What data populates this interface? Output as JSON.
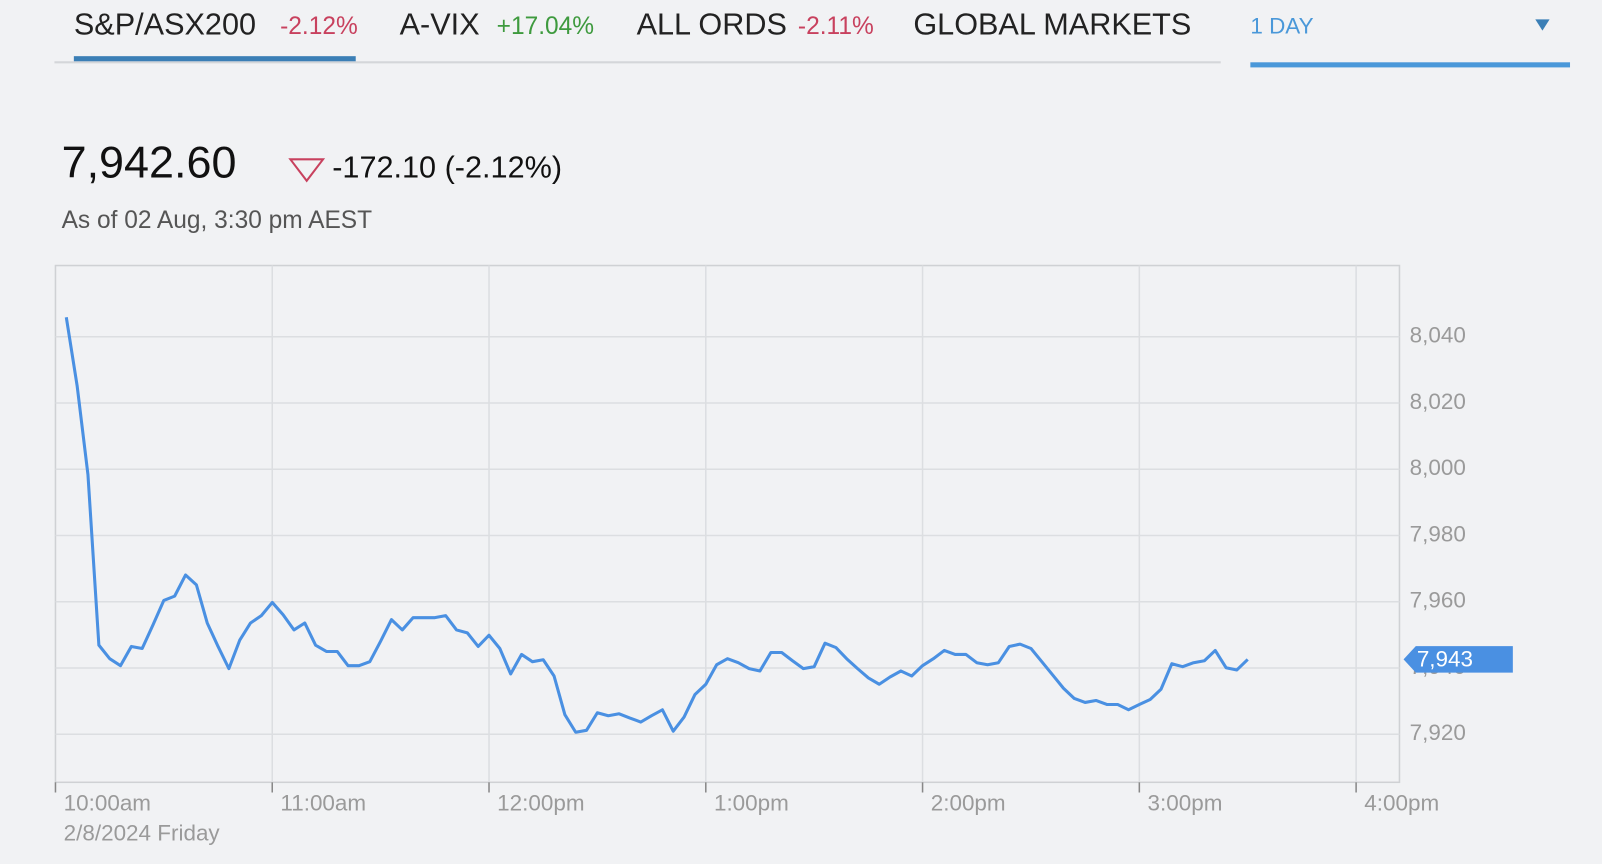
{
  "tabs": [
    {
      "label": "S&P/ASX200",
      "change": "-2.12%",
      "change_color": "#c8415e",
      "active": true
    },
    {
      "label": "A-VIX",
      "change": "+17.04%",
      "change_color": "#3e9a3e",
      "active": false
    },
    {
      "label": "ALL ORDS",
      "change": "-2.11%",
      "change_color": "#c8415e",
      "active": false
    },
    {
      "label": "GLOBAL MARKETS",
      "active": false
    }
  ],
  "range_selector": "1 DAY",
  "quote": {
    "price": "7,942.60",
    "change": "-172.10 (-2.12%)",
    "as_of": "As of 02 Aug, 3:30 pm AEST"
  },
  "chart_data": {
    "type": "line",
    "color": "#4a90e2",
    "date_label": "2/8/2024 Friday",
    "current_label": "7,943",
    "xlim": [
      "10:00am",
      "4:12pm"
    ],
    "xticks": [
      "10:00am",
      "11:00am",
      "12:00pm",
      "1:00pm",
      "2:00pm",
      "3:00pm",
      "4:00pm"
    ],
    "ylim": [
      7905.5,
      8061.5
    ],
    "yticks": [
      {
        "value": 7920,
        "label": "7,920"
      },
      {
        "value": 7940,
        "label": "7,940"
      },
      {
        "value": 7960,
        "label": "7,960"
      },
      {
        "value": 7980,
        "label": "7,980"
      },
      {
        "value": 8000,
        "label": "8,000"
      },
      {
        "value": 8020,
        "label": "8,020"
      },
      {
        "value": 8040,
        "label": "8,040"
      }
    ],
    "grid": true,
    "x": [
      "10:03am",
      "10:06am",
      "10:09am",
      "10:12am",
      "10:15am",
      "10:18am",
      "10:21am",
      "10:24am",
      "10:27am",
      "10:30am",
      "10:33am",
      "10:36am",
      "10:39am",
      "10:42am",
      "10:45am",
      "10:48am",
      "10:51am",
      "10:54am",
      "10:57am",
      "11:00am",
      "11:03am",
      "11:06am",
      "11:09am",
      "11:12am",
      "11:15am",
      "11:18am",
      "11:21am",
      "11:24am",
      "11:27am",
      "11:30am",
      "11:33am",
      "11:36am",
      "11:39am",
      "11:42am",
      "11:45am",
      "11:48am",
      "11:51am",
      "11:54am",
      "11:57am",
      "12:00pm",
      "12:03pm",
      "12:06pm",
      "12:09pm",
      "12:12pm",
      "12:15pm",
      "12:18pm",
      "12:21pm",
      "12:24pm",
      "12:27pm",
      "12:30pm",
      "12:33pm",
      "12:36pm",
      "12:39pm",
      "12:42pm",
      "12:45pm",
      "12:48pm",
      "12:51pm",
      "12:54pm",
      "12:57pm",
      "1:00pm",
      "1:03pm",
      "1:06pm",
      "1:09pm",
      "1:12pm",
      "1:15pm",
      "1:18pm",
      "1:21pm",
      "1:24pm",
      "1:27pm",
      "1:30pm",
      "1:33pm",
      "1:36pm",
      "1:39pm",
      "1:42pm",
      "1:45pm",
      "1:48pm",
      "1:51pm",
      "1:54pm",
      "1:57pm",
      "2:00pm",
      "2:03pm",
      "2:06pm",
      "2:09pm",
      "2:12pm",
      "2:15pm",
      "2:18pm",
      "2:21pm",
      "2:24pm",
      "2:27pm",
      "2:30pm",
      "2:33pm",
      "2:36pm",
      "2:39pm",
      "2:42pm",
      "2:45pm",
      "2:48pm",
      "2:51pm",
      "2:54pm",
      "2:57pm",
      "3:00pm",
      "3:03pm",
      "3:06pm",
      "3:09pm",
      "3:12pm",
      "3:15pm",
      "3:18pm",
      "3:21pm",
      "3:24pm",
      "3:27pm",
      "3:30pm"
    ],
    "values": [
      8045.9,
      8025.2,
      7998.4,
      7946.9,
      7942.8,
      7940.7,
      7946.5,
      7945.9,
      7953.0,
      7960.4,
      7961.7,
      7968.1,
      7965.1,
      7953.6,
      7946.5,
      7939.8,
      7948.4,
      7953.6,
      7955.8,
      7959.8,
      7956.1,
      7951.5,
      7953.6,
      7946.9,
      7945.0,
      7945.0,
      7940.7,
      7940.7,
      7941.9,
      7948.1,
      7954.6,
      7951.5,
      7955.2,
      7955.2,
      7955.2,
      7955.8,
      7951.5,
      7950.6,
      7946.5,
      7949.9,
      7945.9,
      7938.2,
      7944.1,
      7941.9,
      7942.5,
      7937.6,
      7925.9,
      7920.6,
      7921.2,
      7926.5,
      7925.6,
      7926.2,
      7924.9,
      7923.7,
      7925.6,
      7927.4,
      7920.9,
      7925.2,
      7932.0,
      7935.1,
      7941.0,
      7942.8,
      7941.6,
      7939.8,
      7939.1,
      7944.7,
      7944.7,
      7942.2,
      7939.8,
      7940.4,
      7947.5,
      7946.2,
      7942.8,
      7939.8,
      7937.0,
      7935.1,
      7937.3,
      7939.1,
      7937.6,
      7940.7,
      7942.8,
      7945.3,
      7944.1,
      7944.1,
      7941.6,
      7941.0,
      7941.6,
      7946.5,
      7947.2,
      7945.9,
      7941.9,
      7937.9,
      7933.9,
      7930.8,
      7929.6,
      7930.2,
      7929.0,
      7929.0,
      7927.4,
      7929.0,
      7930.5,
      7933.6,
      7941.3,
      7940.4,
      7941.6,
      7942.2,
      7945.3,
      7940.1,
      7939.4,
      7942.6
    ]
  }
}
